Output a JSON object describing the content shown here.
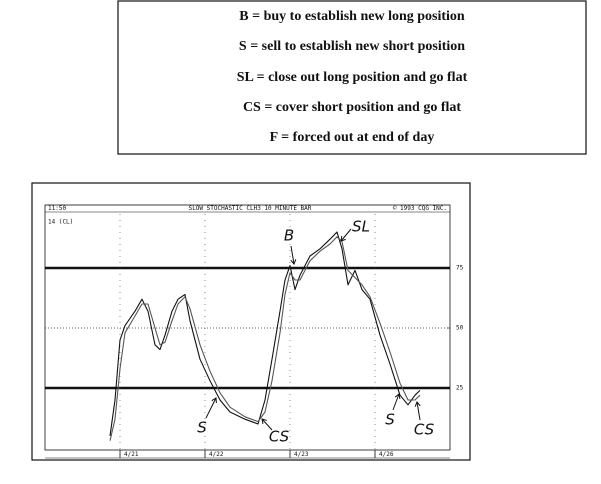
{
  "legend_box": {
    "lines": [
      "B = buy to establish new long position",
      "S = sell to establish new short position",
      "SL = close out long position and go flat",
      "CS = cover short position and go flat",
      "F = forced out at end of day"
    ]
  },
  "chart_data": {
    "type": "line",
    "header_left": "11:50",
    "title": "SLOW STOCHASTIC CLH3 10 MINUTE BAR",
    "copyright": "© 1993 CQG INC.",
    "subtitle": "14 (CL)",
    "x": [
      13,
      14,
      15,
      16,
      18,
      19.4,
      20.6,
      22,
      23,
      24,
      25.4,
      26.6,
      28,
      29,
      31,
      33,
      35,
      37,
      40,
      42.6,
      44,
      45.4,
      47,
      48,
      49,
      50,
      51,
      53,
      55,
      57,
      58.4,
      59.4,
      60.6,
      62,
      63.4,
      65,
      67,
      69,
      71,
      72.6,
      74,
      75
    ],
    "series": [
      {
        "color": "#111111",
        "values": [
          5,
          20,
          45,
          51,
          57,
          62,
          57,
          43,
          41,
          47,
          57,
          62,
          64,
          53,
          37,
          28,
          20,
          15,
          12,
          10,
          20,
          37,
          57,
          70,
          76,
          66,
          72,
          80,
          83,
          87,
          90,
          83,
          68,
          74,
          66,
          62,
          47,
          35,
          22,
          18,
          22,
          24
        ]
      },
      {
        "color": "#555555",
        "values": [
          3,
          12,
          33,
          48,
          55,
          60,
          60,
          50,
          43,
          44,
          53,
          60,
          63,
          58,
          43,
          32,
          23,
          17,
          13,
          11,
          15,
          28,
          48,
          64,
          73,
          70,
          70,
          78,
          82,
          85,
          88,
          86,
          74,
          71,
          68,
          63,
          52,
          40,
          27,
          20,
          20,
          22
        ]
      }
    ],
    "xlim": [
      0,
      81
    ],
    "xticks": [
      {
        "value": 15,
        "label": "4/21"
      },
      {
        "value": 32,
        "label": "4/22"
      },
      {
        "value": 49,
        "label": "4/23"
      },
      {
        "value": 66,
        "label": "4/26"
      }
    ],
    "ylim": [
      0,
      100
    ],
    "yticks": [
      25,
      50,
      75
    ],
    "thick_lines": [
      25,
      75
    ],
    "dotted_lines": [
      50
    ],
    "annotations": [
      "B",
      "SL",
      "S",
      "CS",
      "S",
      "CS"
    ]
  }
}
